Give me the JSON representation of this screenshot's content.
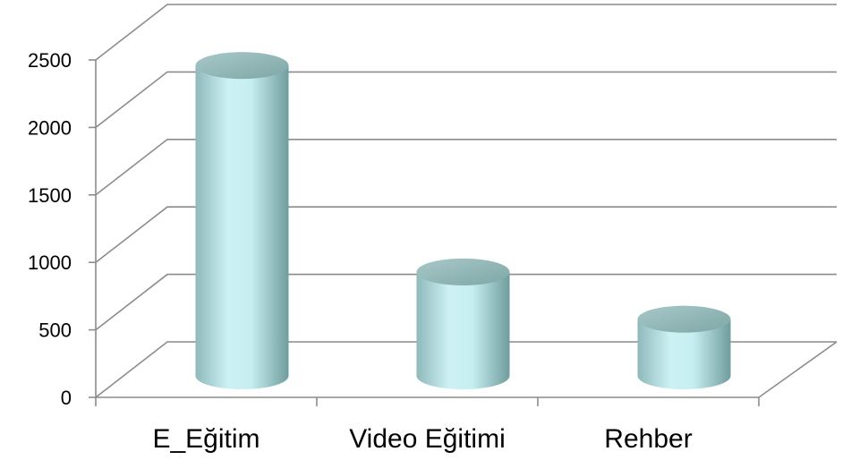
{
  "chart_data": {
    "type": "bar",
    "style": "3d-cylinder",
    "categories": [
      "E_Eğitim",
      "Video Eğitimi",
      "Rehber"
    ],
    "values": [
      2300,
      770,
      420
    ],
    "ylim": [
      0,
      2500
    ],
    "yticks": [
      "0",
      "500",
      "1000",
      "1500",
      "2000",
      "2500"
    ],
    "grid": true,
    "legend": "none",
    "colors": {
      "bar_light": "#cdf1f4",
      "bar_mid": "#a9d6d8",
      "bar_dark": "#6f9c9e",
      "bar_top": "#94b9b9",
      "grid": "#8c8c8c"
    }
  }
}
